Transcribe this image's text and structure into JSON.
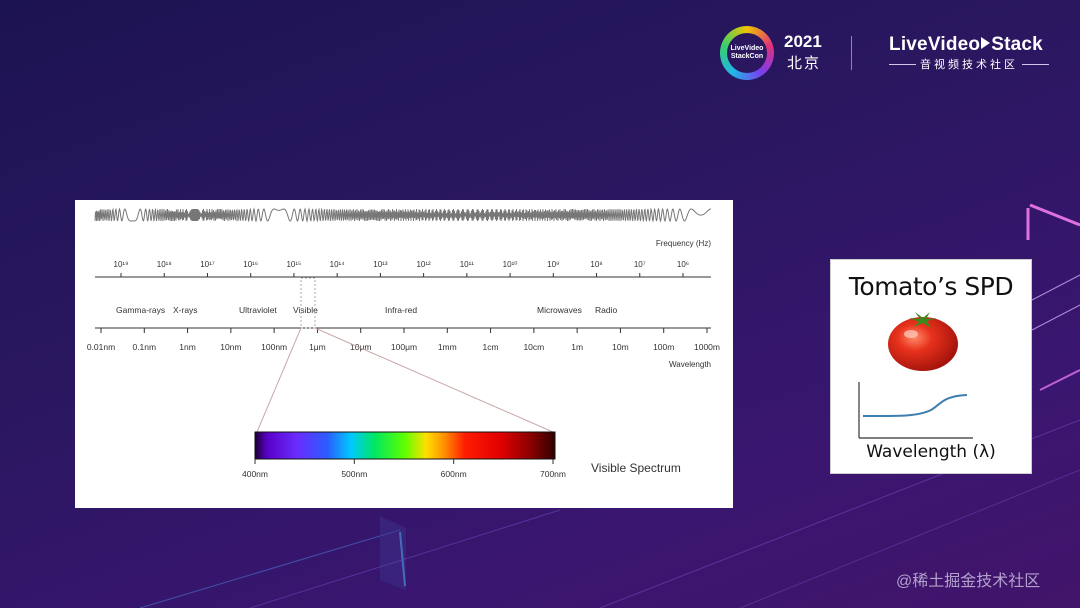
{
  "header": {
    "logo_text": "LiveVideo StackCon",
    "year": "2021",
    "city": "北京",
    "brand": [
      "L",
      "iveVideo",
      "Stack"
    ],
    "brand_sub": "音视频技术社区"
  },
  "spectrum": {
    "frequency_label": "Frequency (Hz)",
    "frequency_ticks": [
      "10¹⁹",
      "10¹⁸",
      "10¹⁷",
      "10¹⁶",
      "10¹⁵",
      "10¹⁴",
      "10¹³",
      "10¹²",
      "10¹¹",
      "10¹⁰",
      "10⁹",
      "10⁸",
      "10⁷",
      "10⁶"
    ],
    "regions": [
      "Gamma-rays",
      "X-rays",
      "Ultraviolet",
      "Visible",
      "Infra-red",
      "Microwaves",
      "Radio"
    ],
    "wavelength_label": "Wavelength",
    "wavelength_ticks": [
      "0.01nm",
      "0.1nm",
      "1nm",
      "10nm",
      "100nm",
      "1μm",
      "10μm",
      "100μm",
      "1mm",
      "1cm",
      "10cm",
      "1m",
      "10m",
      "100m",
      "1000m"
    ],
    "visible_ticks": [
      "400nm",
      "500nm",
      "600nm",
      "700nm"
    ],
    "visible_label": "Visible Spectrum"
  },
  "tomato_card": {
    "title": "Tomato’s SPD",
    "xlabel": "Wavelength (λ)"
  },
  "watermark": "@稀土掘金技术社区",
  "colors": {
    "background": "#2a1760",
    "accent_pink": "#e85cd6",
    "accent_blue": "#3fb4e8"
  }
}
